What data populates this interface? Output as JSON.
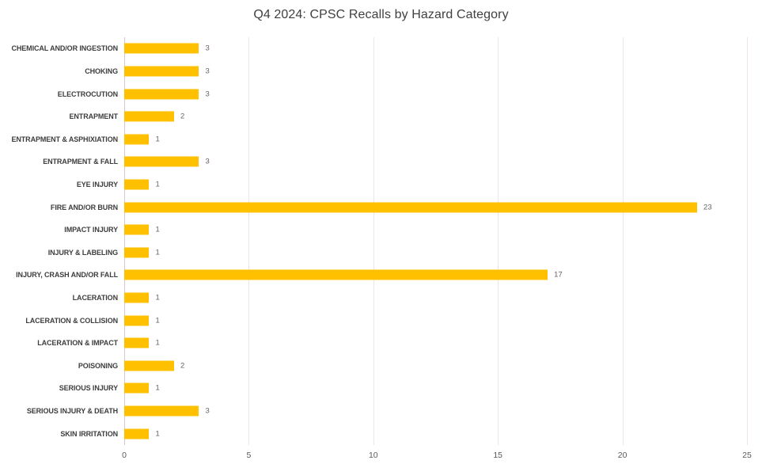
{
  "chart_data": {
    "type": "bar",
    "orientation": "horizontal",
    "title": "Q4 2024: CPSC Recalls by Hazard Category",
    "categories": [
      "CHEMICAL AND/OR INGESTION",
      "CHOKING",
      "ELECTROCUTION",
      "ENTRAPMENT",
      "ENTRAPMENT & ASPHIXIATION",
      "ENTRAPMENT & FALL",
      "EYE INJURY",
      "FIRE AND/OR BURN",
      "IMPACT INJURY",
      "INJURY & LABELING",
      "INJURY, CRASH AND/OR FALL",
      "LACERATION",
      "LACERATION & COLLISION",
      "LACERATION & IMPACT",
      "POISONING",
      "SERIOUS INJURY",
      "SERIOUS INJURY & DEATH",
      "SKIN IRRITATION"
    ],
    "values": [
      3,
      3,
      3,
      2,
      1,
      3,
      1,
      23,
      1,
      1,
      17,
      1,
      1,
      1,
      2,
      1,
      3,
      1
    ],
    "xlabel": "",
    "ylabel": "",
    "xlim": [
      0,
      25
    ],
    "x_ticks": [
      0,
      5,
      10,
      15,
      20,
      25
    ],
    "grid": true,
    "legend": false,
    "data_labels": true,
    "colors": {
      "bar": "#FFC000",
      "gridline": "#f0e3eb",
      "axis_line": "#d9c4d1",
      "title": "#404040",
      "category_label": "#3d3d3d",
      "value_label": "#6d6068",
      "tick_label": "#595959",
      "background": "#ffffff"
    }
  }
}
